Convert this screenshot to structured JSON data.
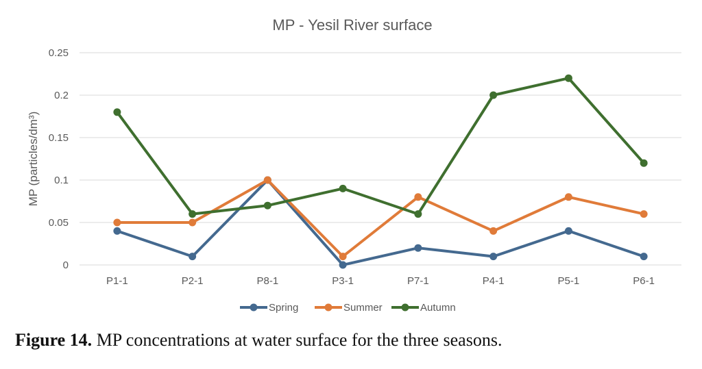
{
  "chart_data": {
    "type": "line",
    "title": "MP - Yesil River surface",
    "ylabel": "MP (particles/dm³)",
    "xlabel": "",
    "categories": [
      "P1-1",
      "P2-1",
      "P8-1",
      "P3-1",
      "P7-1",
      "P4-1",
      "P5-1",
      "P6-1"
    ],
    "ylim": [
      0,
      0.25
    ],
    "yticks": [
      "0",
      "0.05",
      "0.1",
      "0.15",
      "0.2",
      "0.25"
    ],
    "grid": true,
    "legend_position": "bottom",
    "series": [
      {
        "name": "Spring",
        "color": "#44698f",
        "values": [
          0.04,
          0.01,
          0.1,
          0.0,
          0.02,
          0.01,
          0.04,
          0.01
        ]
      },
      {
        "name": "Summer",
        "color": "#e07b39",
        "values": [
          0.05,
          0.05,
          0.1,
          0.01,
          0.08,
          0.04,
          0.08,
          0.06
        ]
      },
      {
        "name": "Autumn",
        "color": "#3f6f2f",
        "values": [
          0.18,
          0.06,
          0.07,
          0.09,
          0.06,
          0.2,
          0.22,
          0.12
        ]
      }
    ]
  },
  "caption": {
    "label": "Figure 14.",
    "text": " MP concentrations at water surface for the three seasons."
  }
}
